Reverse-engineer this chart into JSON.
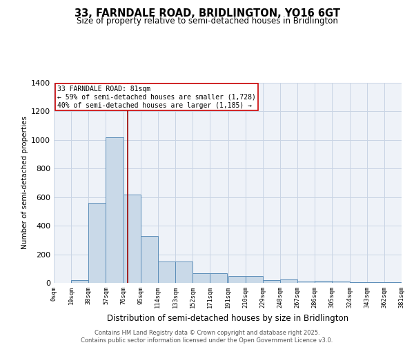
{
  "title_line1": "33, FARNDALE ROAD, BRIDLINGTON, YO16 6GT",
  "title_line2": "Size of property relative to semi-detached houses in Bridlington",
  "xlabel": "Distribution of semi-detached houses by size in Bridlington",
  "ylabel": "Number of semi-detached properties",
  "bin_edges": [
    0,
    19,
    38,
    57,
    76,
    95,
    114,
    133,
    152,
    171,
    191,
    210,
    229,
    248,
    267,
    286,
    305,
    324,
    343,
    362,
    381
  ],
  "bar_heights": [
    0,
    20,
    560,
    1020,
    620,
    330,
    150,
    150,
    70,
    70,
    50,
    50,
    20,
    25,
    10,
    15,
    10,
    5,
    5,
    5
  ],
  "bar_color": "#c9d9e8",
  "bar_edge_color": "#5b8db8",
  "property_size": 81,
  "property_label": "33 FARNDALE ROAD: 81sqm",
  "pct_smaller": 59,
  "count_smaller": 1728,
  "pct_larger": 40,
  "count_larger": 1185,
  "annotation_box_color": "#cc0000",
  "vline_color": "#990000",
  "ylim": [
    0,
    1400
  ],
  "yticks": [
    0,
    200,
    400,
    600,
    800,
    1000,
    1200,
    1400
  ],
  "tick_labels": [
    "0sqm",
    "19sqm",
    "38sqm",
    "57sqm",
    "76sqm",
    "95sqm",
    "114sqm",
    "133sqm",
    "152sqm",
    "171sqm",
    "191sqm",
    "210sqm",
    "229sqm",
    "248sqm",
    "267sqm",
    "286sqm",
    "305sqm",
    "324sqm",
    "343sqm",
    "362sqm",
    "381sqm"
  ],
  "grid_color": "#c8d4e4",
  "bg_color": "#eef2f8",
  "footer_line1": "Contains HM Land Registry data © Crown copyright and database right 2025.",
  "footer_line2": "Contains public sector information licensed under the Open Government Licence v3.0."
}
